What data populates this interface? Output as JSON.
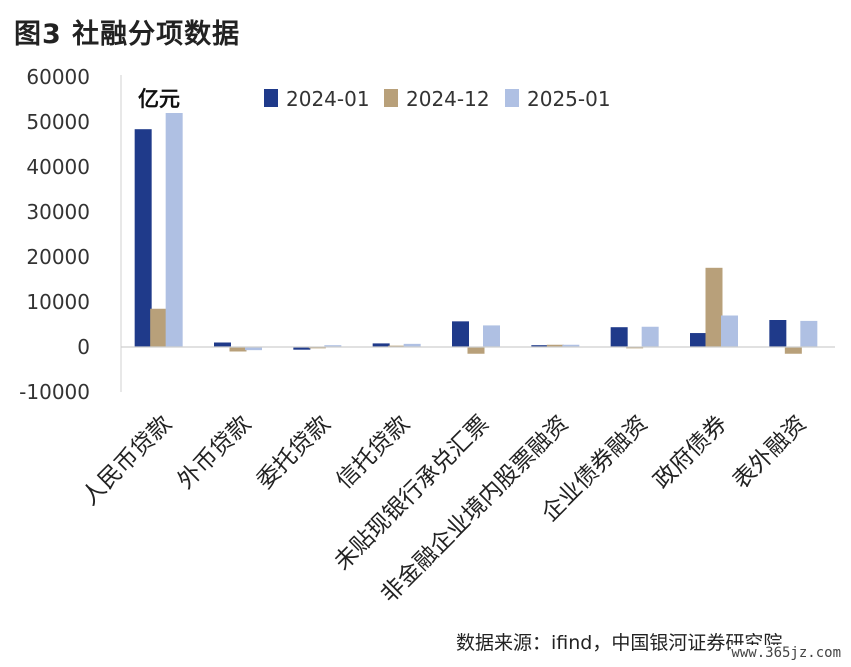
{
  "title": "图3 社融分项数据",
  "source": "数据来源：ifind，中国银河证券研究院",
  "watermark": "www.365jz.com",
  "chart_data": {
    "type": "bar",
    "unit": "亿元",
    "categories": [
      "人民币贷款",
      "外币贷款",
      "委托贷款",
      "信托贷款",
      "未贴现银行承兑汇票",
      "非金融企业境内股票融资",
      "企业债券融资",
      "政府债券",
      "表外融资"
    ],
    "series": [
      {
        "name": "2024-01",
        "color": "#1F3A8A",
        "values": [
          48400,
          1000,
          -600,
          800,
          5700,
          400,
          4400,
          3100,
          6000
        ]
      },
      {
        "name": "2024-12",
        "color": "#B8A07A",
        "values": [
          8500,
          -1000,
          -300,
          300,
          -1500,
          500,
          -300,
          17600,
          -1500
        ]
      },
      {
        "name": "2025-01",
        "color": "#AFC0E3",
        "values": [
          52000,
          -700,
          400,
          700,
          4800,
          500,
          4500,
          7000,
          5800
        ]
      }
    ],
    "ylim": [
      -10000,
      60000
    ],
    "yticks": [
      -10000,
      0,
      10000,
      20000,
      30000,
      40000,
      50000,
      60000
    ],
    "legend_position": "top",
    "grid": false
  }
}
